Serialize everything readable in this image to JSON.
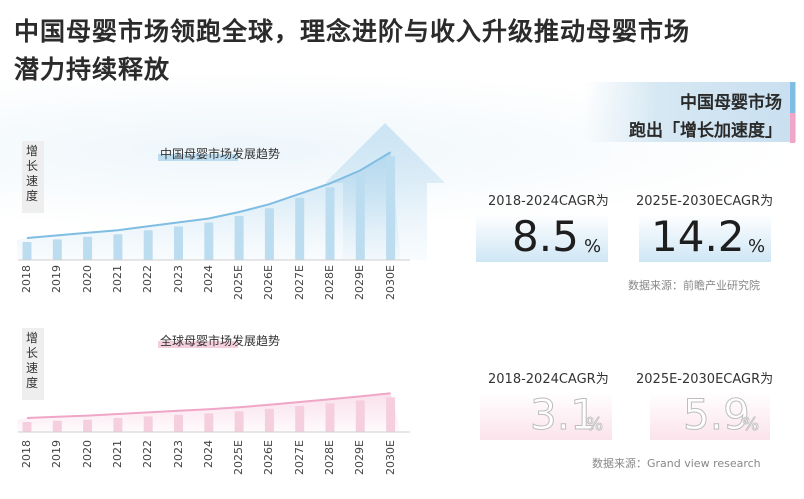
{
  "header": {
    "title_line1": "中国母婴市场领跑全球，理念进阶与收入升级推动母婴市场",
    "title_line2": "潜力持续释放"
  },
  "badge": {
    "line1": "中国母婴市场",
    "line2": "跑出「增长加速度」"
  },
  "colors": {
    "china_accent": "#7fbde3",
    "global_accent": "#f0a6c6",
    "china_bar": "#bcdcf0",
    "global_bar": "#f6cfdf"
  },
  "china": {
    "ylabel": [
      "增",
      "长",
      "速",
      "度"
    ],
    "chart_title": "中国母婴市场发展趋势",
    "cagr1_label": "2018-2024CAGR为",
    "cagr1_value": "8.5",
    "cagr2_label": "2025E-2030ECAGR为",
    "cagr2_value": "14.2",
    "unit": "%",
    "source": "数据来源：前瞻产业研究院"
  },
  "global": {
    "ylabel": [
      "增",
      "长",
      "速",
      "度"
    ],
    "chart_title": "全球母婴市场发展趋势",
    "cagr1_label": "2018-2024CAGR为",
    "cagr1_value": "3.1",
    "cagr2_label": "2025E-2030ECAGR为",
    "cagr2_value": "5.9",
    "unit": "%",
    "source": "数据来源：Grand view research"
  },
  "chart_data": [
    {
      "type": "bar",
      "title": "中国母婴市场发展趋势",
      "ylabel": "增长速度",
      "categories": [
        "2018",
        "2019",
        "2020",
        "2021",
        "2022",
        "2023",
        "2024",
        "2025E",
        "2026E",
        "2027E",
        "2028E",
        "2029E",
        "2030E"
      ],
      "values": [
        1.0,
        1.1,
        1.2,
        1.3,
        1.45,
        1.6,
        1.75,
        2.0,
        2.3,
        2.7,
        3.1,
        3.6,
        4.3
      ]
    },
    {
      "type": "bar",
      "title": "全球母婴市场发展趋势",
      "ylabel": "增长速度",
      "categories": [
        "2018",
        "2019",
        "2020",
        "2021",
        "2022",
        "2023",
        "2024",
        "2025E",
        "2026E",
        "2027E",
        "2028E",
        "2029E",
        "2030E"
      ],
      "values": [
        1.0,
        1.03,
        1.06,
        1.1,
        1.14,
        1.18,
        1.22,
        1.27,
        1.33,
        1.4,
        1.47,
        1.54,
        1.62
      ]
    }
  ]
}
